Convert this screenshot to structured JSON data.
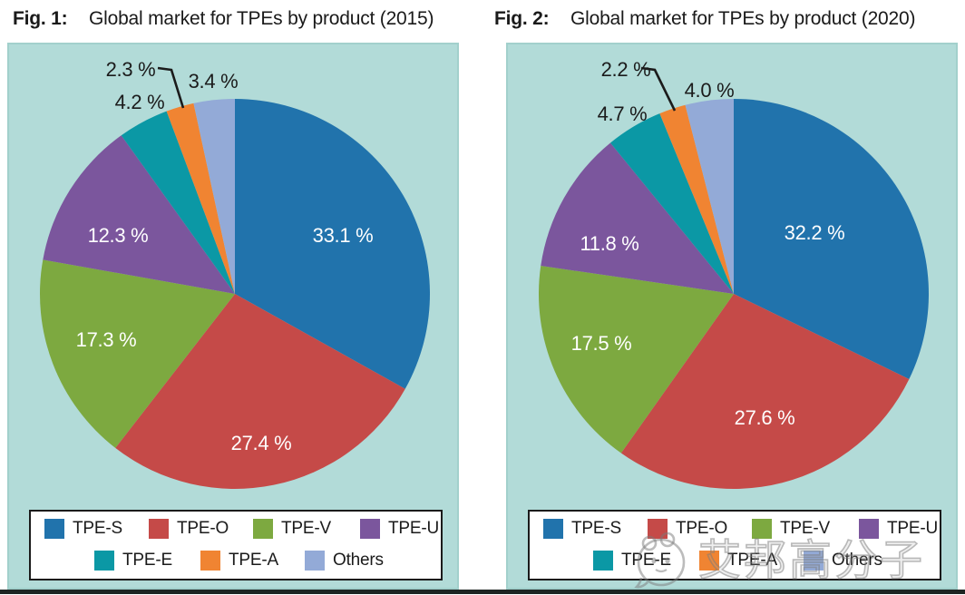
{
  "chart_data": [
    {
      "type": "pie",
      "fig_label": "Fig. 1:",
      "title": "Global market for TPEs by product (2015)",
      "unit": "%",
      "direction": "clockwise",
      "start_angle": "12-oclock",
      "legend_position": "bottom",
      "slices": [
        {
          "name": "TPE-S",
          "value": 33.1,
          "display": "33.1 %",
          "color": "#2173ac",
          "label_placement": "inside"
        },
        {
          "name": "TPE-O",
          "value": 27.4,
          "display": "27.4 %",
          "color": "#c54a48",
          "label_placement": "inside"
        },
        {
          "name": "TPE-V",
          "value": 17.3,
          "display": "17.3 %",
          "color": "#7da940",
          "label_placement": "inside"
        },
        {
          "name": "TPE-U",
          "value": 12.3,
          "display": "12.3 %",
          "color": "#7b569d",
          "label_placement": "inside"
        },
        {
          "name": "TPE-E",
          "value": 4.2,
          "display": "4.2 %",
          "color": "#0b98a5",
          "label_placement": "outside"
        },
        {
          "name": "TPE-A",
          "value": 2.3,
          "display": "2.3 %",
          "color": "#f08432",
          "label_placement": "outside-leader"
        },
        {
          "name": "Others",
          "value": 3.4,
          "display": "3.4 %",
          "color": "#93aad7",
          "label_placement": "outside"
        }
      ],
      "legend_rows": [
        [
          "TPE-S",
          "TPE-O",
          "TPE-V",
          "TPE-U"
        ],
        [
          "TPE-E",
          "TPE-A",
          "Others"
        ]
      ]
    },
    {
      "type": "pie",
      "fig_label": "Fig. 2:",
      "title": "Global market for TPEs by product (2020)",
      "unit": "%",
      "direction": "clockwise",
      "start_angle": "12-oclock",
      "legend_position": "bottom",
      "slices": [
        {
          "name": "TPE-S",
          "value": 32.2,
          "display": "32.2 %",
          "color": "#2173ac",
          "label_placement": "inside"
        },
        {
          "name": "TPE-O",
          "value": 27.6,
          "display": "27.6 %",
          "color": "#c54a48",
          "label_placement": "inside"
        },
        {
          "name": "TPE-V",
          "value": 17.5,
          "display": "17.5 %",
          "color": "#7da940",
          "label_placement": "inside"
        },
        {
          "name": "TPE-U",
          "value": 11.8,
          "display": "11.8 %",
          "color": "#7b569d",
          "label_placement": "inside"
        },
        {
          "name": "TPE-E",
          "value": 4.7,
          "display": "4.7 %",
          "color": "#0b98a5",
          "label_placement": "outside"
        },
        {
          "name": "TPE-A",
          "value": 2.2,
          "display": "2.2 %",
          "color": "#f08432",
          "label_placement": "outside-leader"
        },
        {
          "name": "Others",
          "value": 4.0,
          "display": "4.0 %",
          "color": "#93aad7",
          "label_placement": "outside"
        }
      ],
      "legend_rows": [
        [
          "TPE-S",
          "TPE-O",
          "TPE-V",
          "TPE-U"
        ],
        [
          "TPE-E",
          "TPE-A",
          "Others"
        ]
      ]
    }
  ],
  "watermark": {
    "text": "艾邦高分子"
  },
  "colors": {
    "panel_bg": "#b2dbd8",
    "panel_border": "#a2d0cc",
    "legend_bg": "#ffffff",
    "legend_border": "#1b1b1b",
    "inside_label_text": "#ffffff",
    "outside_label_text": "#1b1b1b",
    "title_text": "#1a1a1a",
    "bottom_rule": "#1d2422"
  }
}
